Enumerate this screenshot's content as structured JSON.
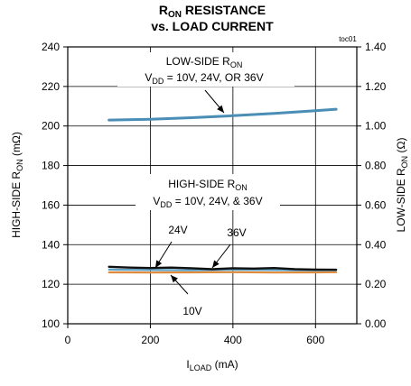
{
  "chart_data": {
    "type": "line",
    "title": {
      "line1_parts": [
        {
          "text": "R",
          "sub": false
        },
        {
          "text": "ON",
          "sub": true
        },
        {
          "text": " RESISTANCE",
          "sub": false
        }
      ],
      "line2": "vs. LOAD CURRENT"
    },
    "figure_tag": "toc01",
    "xlabel_parts": [
      {
        "text": "I",
        "sub": false
      },
      {
        "text": "LOAD",
        "sub": true
      },
      {
        "text": " (mA)",
        "sub": false
      }
    ],
    "ylabel_left_parts": [
      {
        "text": "HIGH-SIDE R",
        "sub": false
      },
      {
        "text": "ON",
        "sub": true
      },
      {
        "text": " (mΩ)",
        "sub": false
      }
    ],
    "ylabel_right_parts": [
      {
        "text": "LOW-SIDE R",
        "sub": false
      },
      {
        "text": "ON",
        "sub": true
      },
      {
        "text": " (Ω)",
        "sub": false
      }
    ],
    "xlim": [
      0,
      700
    ],
    "ylim_left": [
      100,
      240
    ],
    "ylim_right": [
      0.0,
      1.4
    ],
    "xticks": [
      0,
      200,
      400,
      600
    ],
    "xtick_labels": [
      "0",
      "200",
      "400",
      "600"
    ],
    "yticks_left": [
      100,
      120,
      140,
      160,
      180,
      200,
      220,
      240
    ],
    "ytick_labels_left": [
      "100",
      "120",
      "140",
      "160",
      "180",
      "200",
      "220",
      "240"
    ],
    "yticks_right": [
      0.0,
      0.2,
      0.4,
      0.6,
      0.8,
      1.0,
      1.2,
      1.4
    ],
    "ytick_labels_right": [
      "0.00",
      "0.20",
      "0.40",
      "0.60",
      "0.80",
      "1.00",
      "1.20",
      "1.40"
    ],
    "grid": true,
    "series": [
      {
        "key": "low-side",
        "axis": "right",
        "color": "#4a8db5",
        "x": [
          100,
          200,
          300,
          400,
          500,
          600,
          650
        ],
        "y": [
          1.03,
          1.034,
          1.042,
          1.052,
          1.064,
          1.077,
          1.085
        ]
      },
      {
        "key": "36v",
        "axis": "left",
        "color": "#111111",
        "x": [
          100,
          150,
          200,
          250,
          300,
          350,
          400,
          450,
          500,
          550,
          600,
          650
        ],
        "y": [
          128.8,
          128.4,
          128.2,
          128.4,
          128.1,
          127.6,
          128.1,
          127.9,
          128.2,
          127.6,
          127.4,
          127.3
        ]
      },
      {
        "key": "24v",
        "axis": "left",
        "color": "#5ea0c4",
        "x": [
          100,
          200,
          300,
          400,
          500,
          600,
          650
        ],
        "y": [
          127.4,
          127.2,
          127.1,
          127.3,
          127.2,
          127.0,
          127.1
        ]
      },
      {
        "key": "10v",
        "axis": "left",
        "color": "#e08a3c",
        "x": [
          100,
          200,
          300,
          400,
          500,
          600,
          650
        ],
        "y": [
          126.0,
          125.9,
          126.0,
          126.1,
          125.9,
          126.0,
          126.1
        ]
      }
    ],
    "annotations": [
      {
        "key": "low-label-1",
        "parts": [
          {
            "text": "LOW-SIDE R",
            "sub": false
          },
          {
            "text": "ON",
            "sub": true
          }
        ]
      },
      {
        "key": "low-label-2",
        "parts": [
          {
            "text": "V",
            "sub": false
          },
          {
            "text": "DD",
            "sub": true
          },
          {
            "text": " = 10V, 24V, OR 36V",
            "sub": false
          }
        ]
      },
      {
        "key": "high-label-1",
        "parts": [
          {
            "text": "HIGH-SIDE R",
            "sub": false
          },
          {
            "text": "ON",
            "sub": true
          }
        ]
      },
      {
        "key": "high-label-2",
        "parts": [
          {
            "text": "V",
            "sub": false
          },
          {
            "text": "DD",
            "sub": true
          },
          {
            "text": " = 10V, 24V, & 36V",
            "sub": false
          }
        ]
      },
      {
        "key": "label-24v",
        "text": "24V"
      },
      {
        "key": "label-36v",
        "text": "36V"
      },
      {
        "key": "label-10v",
        "text": "10V"
      }
    ]
  }
}
